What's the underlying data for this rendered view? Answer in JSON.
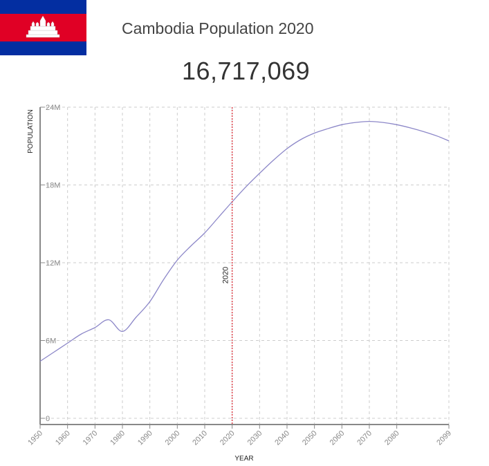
{
  "header": {
    "title": "Cambodia Population 2020",
    "population_value": "16,717,069"
  },
  "flag": {
    "country": "Cambodia",
    "colors": {
      "blue": "#032EA1",
      "red": "#E00025",
      "white": "#FFFFFF"
    }
  },
  "colors": {
    "line": "#8c87c8",
    "marker_line": "#e0414a",
    "grid": "#cccccc",
    "axis": "#888888"
  },
  "chart_data": {
    "type": "line",
    "title": "Cambodia Population 2020",
    "xlabel": "YEAR",
    "ylabel": "POPULATION",
    "x_ticks": [
      "1950",
      "1960",
      "1970",
      "1980",
      "1990",
      "2000",
      "2010",
      "2020",
      "2030",
      "2040",
      "2050",
      "2060",
      "2070",
      "2080",
      "2099"
    ],
    "y_ticks": [
      "0",
      "6M",
      "12M",
      "18M",
      "24M"
    ],
    "xlim": [
      1950,
      2099
    ],
    "ylim": [
      0,
      24000000
    ],
    "grid": true,
    "legend": null,
    "annotations": [
      {
        "type": "vertical-line",
        "x": 2020,
        "label": "2020"
      }
    ],
    "series": [
      {
        "name": "Population",
        "x": [
          1950,
          1955,
          1960,
          1965,
          1970,
          1975,
          1980,
          1985,
          1990,
          1995,
          2000,
          2005,
          2010,
          2015,
          2020,
          2025,
          2030,
          2035,
          2040,
          2045,
          2050,
          2055,
          2060,
          2065,
          2070,
          2075,
          2080,
          2085,
          2090,
          2095,
          2099
        ],
        "values": [
          4400000,
          5100000,
          5800000,
          6500000,
          7000000,
          7600000,
          6700000,
          7800000,
          9000000,
          10700000,
          12200000,
          13300000,
          14300000,
          15500000,
          16700000,
          17850000,
          18900000,
          19900000,
          20800000,
          21500000,
          22000000,
          22350000,
          22650000,
          22820000,
          22900000,
          22820000,
          22650000,
          22400000,
          22100000,
          21750000,
          21400000
        ]
      }
    ]
  },
  "axes": {
    "y_title": "POPULATION",
    "x_title": "YEAR",
    "marker_label": "2020"
  }
}
